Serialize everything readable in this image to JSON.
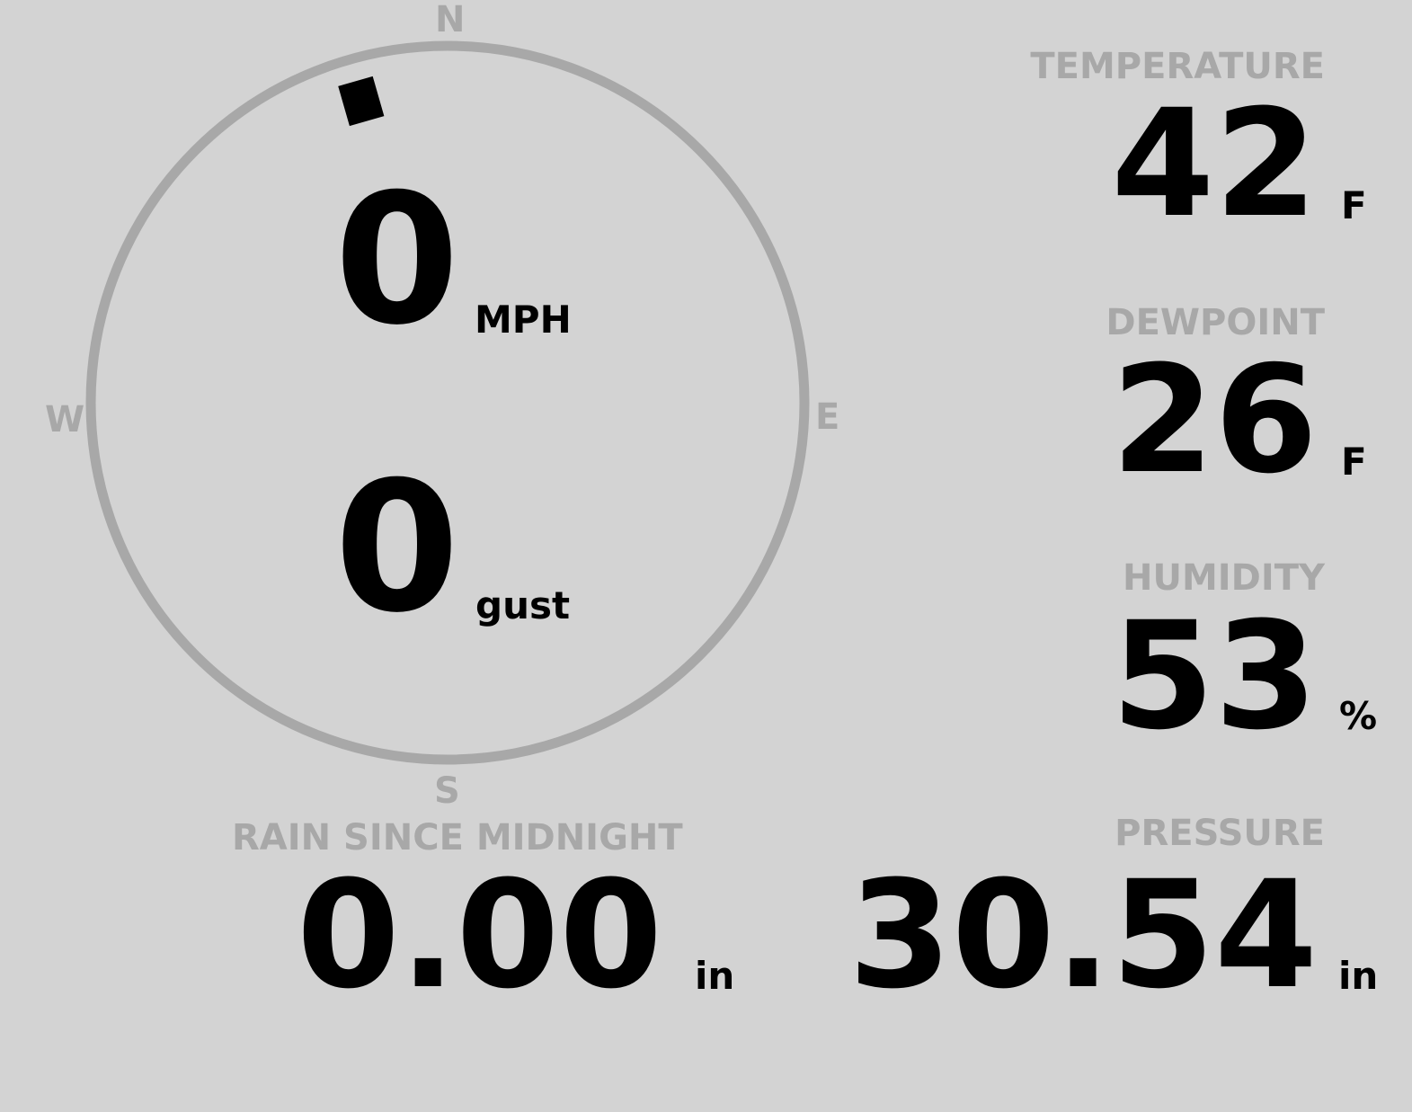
{
  "wind": {
    "compass": {
      "n": "N",
      "e": "E",
      "s": "S",
      "w": "W"
    },
    "direction_deg": 344,
    "speed": "0",
    "speed_unit": "MPH",
    "gust": "0",
    "gust_unit": "gust"
  },
  "temperature": {
    "label": "TEMPERATURE",
    "value": "42",
    "unit": "F"
  },
  "dewpoint": {
    "label": "DEWPOINT",
    "value": "26",
    "unit": "F"
  },
  "humidity": {
    "label": "HUMIDITY",
    "value": "53",
    "unit": "%"
  },
  "rain": {
    "label": "RAIN SINCE MIDNIGHT",
    "value": "0.00",
    "unit": "in"
  },
  "pressure": {
    "label": "PRESSURE",
    "value": "30.54",
    "unit": "in"
  },
  "colors": {
    "background": "#d3d3d3",
    "label": "#a8a8a8",
    "value": "#000000"
  }
}
